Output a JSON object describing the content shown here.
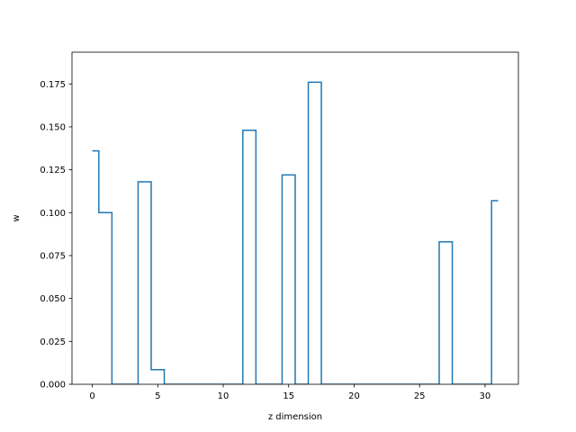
{
  "chart_data": {
    "type": "line",
    "drawstyle": "steps-mid",
    "title": "",
    "xlabel": "z dimension",
    "ylabel": "w",
    "xlim": [
      -1.55,
      32.55
    ],
    "ylim": [
      0,
      0.1935
    ],
    "xticks": [
      0,
      5,
      10,
      15,
      20,
      25,
      30
    ],
    "xtick_labels": [
      "0",
      "5",
      "10",
      "15",
      "20",
      "25",
      "30"
    ],
    "yticks": [
      0,
      0.025,
      0.05,
      0.075,
      0.1,
      0.125,
      0.15,
      0.175
    ],
    "ytick_labels": [
      "0.000",
      "0.025",
      "0.050",
      "0.075",
      "0.100",
      "0.125",
      "0.150",
      "0.175"
    ],
    "grid": false,
    "legend": "none",
    "colors": {
      "line": "#1f77b4"
    },
    "series": [
      {
        "x": [
          0,
          1,
          2,
          3,
          4,
          5,
          6,
          7,
          8,
          9,
          10,
          11,
          12,
          13,
          14,
          15,
          16,
          17,
          18,
          19,
          20,
          21,
          22,
          23,
          24,
          25,
          26,
          27,
          28,
          29,
          30,
          31
        ],
        "y": [
          0.136,
          0.1,
          0,
          0,
          0.118,
          0.0085,
          0,
          0,
          0,
          0,
          0,
          0,
          0.148,
          0,
          0,
          0.122,
          0,
          0.176,
          0,
          0,
          0,
          0,
          0,
          0,
          0,
          0,
          0,
          0.083,
          0,
          0,
          0,
          0.107
        ]
      }
    ]
  }
}
